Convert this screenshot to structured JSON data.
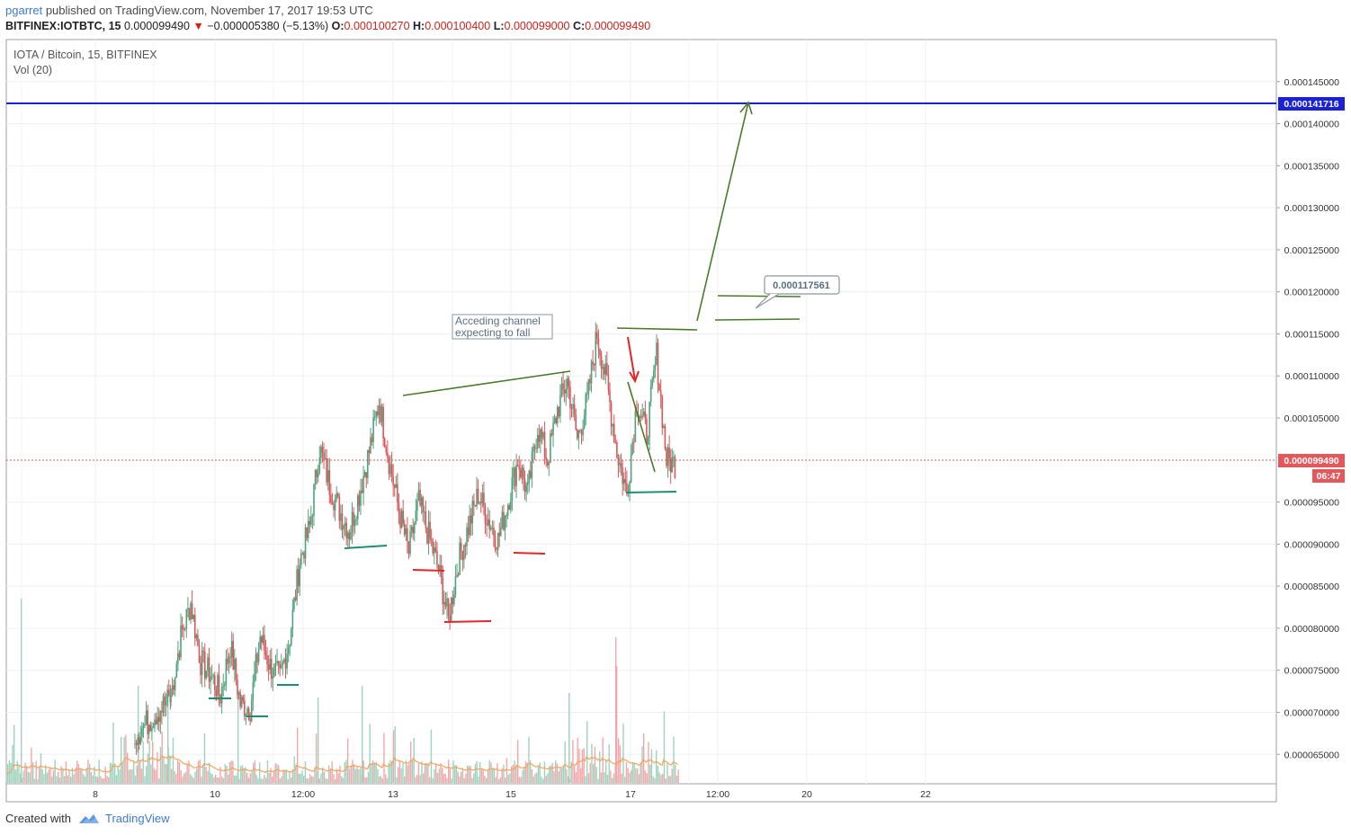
{
  "header": {
    "publisher": "pgarret",
    "published_text": "published on TradingView.com, November 17, 2017 19:53 UTC",
    "symbol_line": "BITFINEX:IOTBTC, 15",
    "last_price": "0.000099490",
    "change": "−0.000005380 (−5.13%)",
    "o_label": "O:",
    "o_value": "0.000100270",
    "h_label": "H:",
    "h_value": "0.000100400",
    "l_label": "L:",
    "l_value": "0.000099000",
    "c_label": "C:",
    "c_value": "0.000099490"
  },
  "chart_data": {
    "type": "candlestick",
    "title": "IOTA / Bitcoin, 15, BITFINEX",
    "volume_label": "Vol (20)",
    "x_tick_labels": [
      "8",
      "10",
      "12:00",
      "13",
      "15",
      "17",
      "12:00",
      "20",
      "22"
    ],
    "y_tick_labels": [
      "0.000145000",
      "0.000140000",
      "0.000135000",
      "0.000130000",
      "0.000125000",
      "0.000120000",
      "0.000115000",
      "0.000110000",
      "0.000105000",
      "0.000095000",
      "0.000090000",
      "0.000085000",
      "0.000080000",
      "0.000075000",
      "0.000070000",
      "0.000065000"
    ],
    "y_ticks": [
      0.000145,
      0.00014,
      0.000135,
      0.00013,
      0.000125,
      0.00012,
      0.000115,
      0.00011,
      0.000105,
      9.5e-05,
      9e-05,
      8.5e-05,
      8e-05,
      7.5e-05,
      7e-05,
      6.5e-05
    ],
    "ylim": [
      6.15e-05,
      0.00015
    ],
    "current_price": 9.949e-05,
    "current_price_label": "0.000099490",
    "countdown_label": "06:47",
    "target_price": 0.000141716,
    "target_price_label": "0.000141716",
    "price_callout_label": "0.000117561",
    "annotation_text_lines": [
      "Acceding channel",
      "expecting to fall"
    ],
    "grid": true,
    "price_path": [
      [
        7.2e-05,
        7.9e-05
      ],
      [
        7.9e-05,
        8.3e-05
      ],
      [
        8.3e-05,
        7.6e-05
      ],
      [
        7.6e-05,
        7.45e-05
      ],
      [
        7.45e-05,
        7.2e-05
      ],
      [
        7.2e-05,
        7.8e-05
      ],
      [
        7.8e-05,
        7.1e-05
      ],
      [
        7.1e-05,
        7.05e-05
      ],
      [
        7.05e-05,
        7.9e-05
      ],
      [
        7.9e-05,
        7.55e-05
      ],
      [
        7.55e-05,
        7.4e-05
      ],
      [
        7.4e-05,
        7.9e-05
      ],
      [
        7.9e-05,
        8.8e-05
      ],
      [
        8.8e-05,
        9.2e-05
      ],
      [
        9.2e-05,
        0.0001015
      ],
      [
        0.0001015,
        9.7e-05
      ],
      [
        9.7e-05,
        9.4e-05
      ],
      [
        9.4e-05,
        9.15e-05
      ],
      [
        9.15e-05,
        9.6e-05
      ],
      [
        9.6e-05,
        0.000101
      ],
      [
        0.000101,
        0.000107
      ],
      [
        0.000107,
        0.0001
      ],
      [
        0.0001,
        9.4e-05
      ],
      [
        9.4e-05,
        8.9e-05
      ],
      [
        8.9e-05,
        9.5e-05
      ],
      [
        9.5e-05,
        9.1e-05
      ],
      [
        9.1e-05,
        8.7e-05
      ],
      [
        8.7e-05,
        8.1e-05
      ],
      [
        8.1e-05,
        8.8e-05
      ],
      [
        8.8e-05,
        9.2e-05
      ],
      [
        9.2e-05,
        9.6e-05
      ],
      [
        9.6e-05,
        9.3e-05
      ],
      [
        9.3e-05,
        9.05e-05
      ],
      [
        9.05e-05,
        9.5e-05
      ],
      [
        9.5e-05,
        0.0001
      ],
      [
        0.0001,
        9.6e-05
      ],
      [
        9.6e-05,
        0.000104
      ],
      [
        0.000104,
        0.0001
      ],
      [
        0.0001,
        0.000106
      ],
      [
        0.000106,
        0.0001095
      ],
      [
        0.0001095,
        0.0001025
      ],
      [
        0.0001025,
        0.000107
      ],
      [
        0.000107,
        0.000115
      ],
      [
        0.000115,
        0.000109
      ],
      [
        0.000109,
        0.000101
      ],
      [
        0.000101,
        9.6e-05
      ],
      [
        9.6e-05,
        0.000107
      ],
      [
        0.000107,
        0.000103
      ],
      [
        0.000103,
        0.0001125
      ],
      [
        0.0001125,
        0.0001
      ],
      [
        0.0001,
        9.95e-05
      ]
    ]
  }
}
